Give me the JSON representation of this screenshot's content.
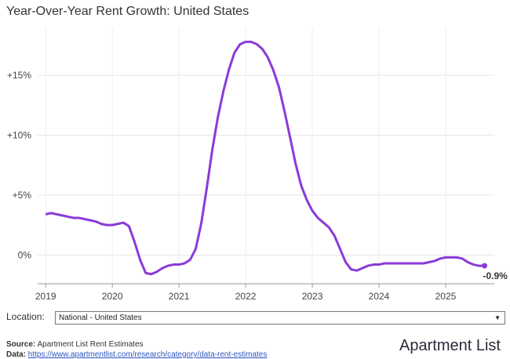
{
  "chart_data": {
    "type": "line",
    "title": "Year-Over-Year Rent Growth: United States",
    "x": [
      2019,
      2019.083,
      2019.167,
      2019.25,
      2019.333,
      2019.417,
      2019.5,
      2019.583,
      2019.667,
      2019.75,
      2019.833,
      2019.917,
      2020,
      2020.083,
      2020.167,
      2020.25,
      2020.333,
      2020.417,
      2020.5,
      2020.583,
      2020.667,
      2020.75,
      2020.833,
      2020.917,
      2021,
      2021.083,
      2021.167,
      2021.25,
      2021.333,
      2021.417,
      2021.5,
      2021.583,
      2021.667,
      2021.75,
      2021.833,
      2021.917,
      2022,
      2022.083,
      2022.167,
      2022.25,
      2022.333,
      2022.417,
      2022.5,
      2022.583,
      2022.667,
      2022.75,
      2022.833,
      2022.917,
      2023,
      2023.083,
      2023.167,
      2023.25,
      2023.333,
      2023.417,
      2023.5,
      2023.583,
      2023.667,
      2023.75,
      2023.833,
      2023.917,
      2024,
      2024.083,
      2024.167,
      2024.25,
      2024.333,
      2024.417,
      2024.5,
      2024.583,
      2024.667,
      2024.75,
      2024.833,
      2024.917,
      2025,
      2025.083,
      2025.167,
      2025.25,
      2025.333,
      2025.417,
      2025.5,
      2025.583
    ],
    "series": [
      {
        "name": "National - United States",
        "color": "#8a3ad8",
        "values": [
          3.4,
          3.5,
          3.4,
          3.3,
          3.2,
          3.1,
          3.1,
          3.0,
          2.9,
          2.8,
          2.6,
          2.5,
          2.5,
          2.6,
          2.7,
          2.4,
          1.1,
          -0.4,
          -1.5,
          -1.6,
          -1.4,
          -1.1,
          -0.9,
          -0.8,
          -0.8,
          -0.7,
          -0.4,
          0.5,
          2.6,
          5.6,
          8.8,
          11.5,
          13.7,
          15.5,
          16.9,
          17.6,
          17.8,
          17.8,
          17.6,
          17.2,
          16.5,
          15.4,
          14.0,
          12.0,
          9.8,
          7.6,
          5.8,
          4.6,
          3.7,
          3.1,
          2.7,
          2.3,
          1.6,
          0.5,
          -0.6,
          -1.2,
          -1.3,
          -1.1,
          -0.9,
          -0.8,
          -0.8,
          -0.7,
          -0.7,
          -0.7,
          -0.7,
          -0.7,
          -0.7,
          -0.7,
          -0.7,
          -0.6,
          -0.5,
          -0.3,
          -0.2,
          -0.2,
          -0.2,
          -0.3,
          -0.6,
          -0.8,
          -0.9,
          -0.9
        ],
        "value_labels": [
          null,
          null,
          null,
          null,
          null,
          null,
          null,
          null,
          null,
          null,
          null,
          null,
          null,
          null,
          null,
          null,
          null,
          null,
          null,
          null,
          null,
          null,
          null,
          null,
          null,
          null,
          null,
          null,
          null,
          null,
          null,
          null,
          null,
          null,
          null,
          null,
          null,
          null,
          null,
          null,
          null,
          null,
          null,
          null,
          null,
          null,
          null,
          null,
          null,
          null,
          null,
          null,
          null,
          null,
          null,
          null,
          null,
          null,
          null,
          null,
          null,
          null,
          null,
          null,
          null,
          null,
          null,
          null,
          null,
          null,
          null,
          null,
          null,
          null,
          null,
          null,
          null,
          null,
          null,
          "-0.9%"
        ]
      }
    ],
    "xlim": [
      2018.88,
      2025.73
    ],
    "xticks": [
      2019,
      2020,
      2021,
      2022,
      2023,
      2024,
      2025
    ],
    "ylim": [
      -2.4,
      19
    ],
    "yticks": [
      {
        "value": 0,
        "label": "0%"
      },
      {
        "value": 5,
        "label": "+5%"
      },
      {
        "value": 10,
        "label": "+10%"
      },
      {
        "value": 15,
        "label": "+15%"
      }
    ],
    "grid": true
  },
  "controls": {
    "location_label": "Location:",
    "location_value": "National - United States"
  },
  "footer": {
    "source_label": "Source:",
    "source_text": "Apartment List Rent Estimates",
    "data_label": "Data:",
    "data_url": "https://www.apartmentlist.com/research/category/data-rent-estimates",
    "logo": "Apartment List"
  }
}
